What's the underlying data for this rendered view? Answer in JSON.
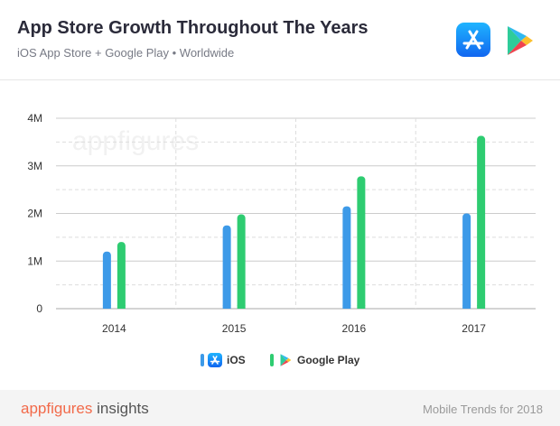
{
  "header": {
    "title": "App Store Growth Throughout The Years",
    "subtitle": "iOS App Store + Google Play • Worldwide"
  },
  "icons": {
    "app_store": "app-store-icon",
    "google_play": "google-play-icon"
  },
  "chart_data": {
    "type": "bar",
    "title": "App Store Growth Throughout The Years",
    "subtitle": "iOS App Store + Google Play • Worldwide",
    "categories": [
      "2014",
      "2015",
      "2016",
      "2017"
    ],
    "series": [
      {
        "name": "iOS",
        "color": "#3d9ae8",
        "values": [
          1.2,
          1.75,
          2.15,
          2.0
        ]
      },
      {
        "name": "Google Play",
        "color": "#2ecc71",
        "values": [
          1.4,
          1.98,
          2.78,
          3.63
        ]
      }
    ],
    "yticks": [
      {
        "value": 0,
        "label": "0"
      },
      {
        "value": 1,
        "label": "1M"
      },
      {
        "value": 2,
        "label": "2M"
      },
      {
        "value": 3,
        "label": "3M"
      },
      {
        "value": 4,
        "label": "4M"
      }
    ],
    "ylim": [
      0,
      4
    ],
    "ylabel": "",
    "xlabel": "",
    "grid": true,
    "legend_position": "bottom-center",
    "watermark": "appfigures"
  },
  "legend": {
    "ios_label": "iOS",
    "gplay_label": "Google Play"
  },
  "footer": {
    "brand_main": "appfigures",
    "brand_suffix": " insights",
    "right_text": "Mobile Trends for 2018"
  },
  "colors": {
    "ios": "#3d9ae8",
    "google_play": "#2ecc71",
    "brand": "#f26a4a"
  }
}
